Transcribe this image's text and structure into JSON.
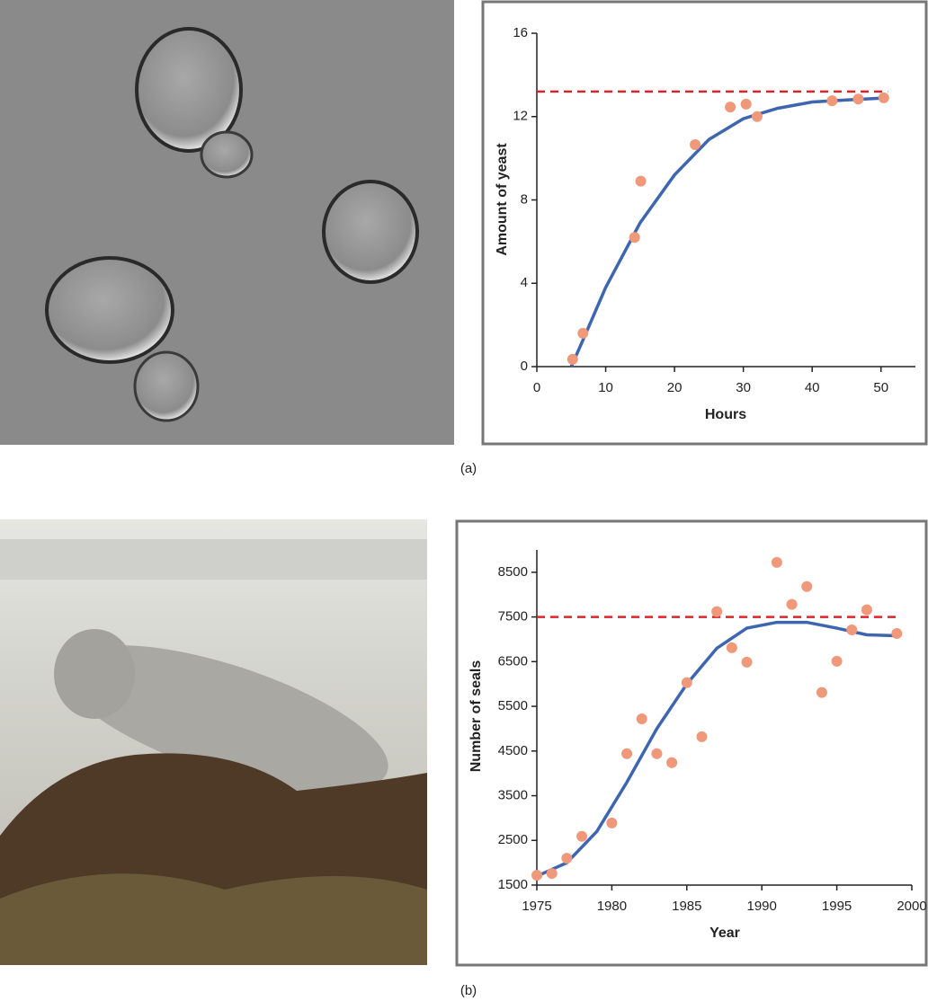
{
  "chart_data": [
    {
      "type": "scatter",
      "panel_label": "(a)",
      "x_label": "Hours",
      "y_label": "Amount of yeast",
      "xlim": [
        0,
        55
      ],
      "ylim": [
        0,
        16
      ],
      "xticks": [
        0,
        10,
        20,
        30,
        40,
        50
      ],
      "yticks": [
        0,
        4,
        8,
        12,
        16
      ],
      "series": [
        {
          "type": "scatter",
          "color": "#f0987a",
          "x": [
            5.2,
            6.7,
            14.2,
            15.1,
            23.0,
            28.1,
            30.4,
            32.0,
            42.9,
            46.7,
            50.4
          ],
          "values": [
            0.35,
            1.6,
            6.2,
            8.9,
            10.65,
            12.46,
            12.6,
            12.0,
            12.76,
            12.84,
            12.9
          ]
        },
        {
          "type": "line",
          "color": "#3e66b0",
          "x": [
            5,
            7,
            10,
            15,
            20,
            25,
            30,
            35,
            40,
            45,
            51
          ],
          "values": [
            0,
            1.5,
            3.8,
            6.9,
            9.2,
            10.9,
            11.9,
            12.4,
            12.7,
            12.8,
            12.9
          ]
        },
        {
          "type": "dashed",
          "color": "#d9262c",
          "x": [
            0,
            51
          ],
          "values": [
            13.2,
            13.2
          ]
        }
      ]
    },
    {
      "type": "scatter",
      "panel_label": "(b)",
      "x_label": "Year",
      "y_label": "Number of seals",
      "xlim": [
        1975,
        2000
      ],
      "ylim": [
        1500,
        9000
      ],
      "xticks": [
        1975,
        1980,
        1985,
        1990,
        1995,
        2000
      ],
      "yticks": [
        1500,
        2500,
        3500,
        4500,
        5500,
        6500,
        7500,
        8500
      ],
      "series": [
        {
          "type": "scatter",
          "color": "#f0987a",
          "x": [
            1975,
            1976,
            1977,
            1978,
            1980,
            1981,
            1982,
            1983,
            1984,
            1985,
            1986,
            1987,
            1988,
            1989,
            1991,
            1992,
            1993,
            1994,
            1995,
            1996,
            1997,
            1999
          ],
          "values": [
            1720,
            1760,
            2100,
            2590,
            2890,
            4440,
            5220,
            4440,
            4240,
            6030,
            4820,
            7620,
            6810,
            6490,
            8720,
            7780,
            8180,
            5810,
            6510,
            7210,
            7660,
            7130
          ]
        },
        {
          "type": "line",
          "color": "#3e66b0",
          "x": [
            1975,
            1977,
            1979,
            1981,
            1983,
            1985,
            1987,
            1989,
            1991,
            1993,
            1995,
            1997,
            1999
          ],
          "values": [
            1700,
            2000,
            2700,
            3800,
            5000,
            6000,
            6800,
            7250,
            7380,
            7380,
            7250,
            7100,
            7080
          ]
        },
        {
          "type": "dashed",
          "color": "#d9262c",
          "x": [
            1975,
            1999
          ],
          "values": [
            7500,
            7500
          ]
        }
      ]
    }
  ]
}
